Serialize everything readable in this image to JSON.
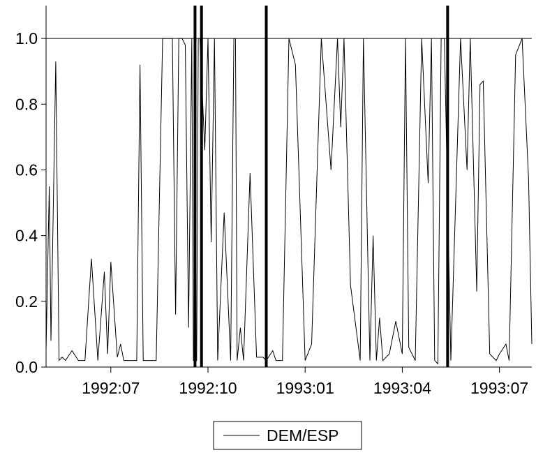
{
  "chart_data": {
    "type": "line",
    "title": "",
    "xlabel": "",
    "ylabel": "",
    "ylim": [
      0.0,
      1.1
    ],
    "xlim": [
      "1992:05",
      "1993:08"
    ],
    "yticks": [
      0.0,
      0.2,
      0.4,
      0.6,
      0.8,
      1.0
    ],
    "xticks": [
      "1992:07",
      "1992:10",
      "1993:01",
      "1993:04",
      "1993:07"
    ],
    "ytick_labels": [
      "0.0",
      "0.2",
      "0.4",
      "0.6",
      "0.8",
      "1.0"
    ],
    "reference_line": 1.0,
    "legend": {
      "position": "bottom-center",
      "entries": [
        "DEM/ESP"
      ]
    },
    "vertical_markers": [
      "1992:09.6",
      "1992:09.8",
      "1992:11.8",
      "1993:05.4"
    ],
    "series": [
      {
        "name": "DEM/ESP",
        "color": "#000000",
        "x": [
          "1992:05.0",
          "1992:05.1",
          "1992:05.15",
          "1992:05.2",
          "1992:05.3",
          "1992:05.4",
          "1992:05.5",
          "1992:05.6",
          "1992:05.8",
          "1992:06.0",
          "1992:06.2",
          "1992:06.4",
          "1992:06.6",
          "1992:06.8",
          "1992:06.9",
          "1992:07.0",
          "1992:07.2",
          "1992:07.3",
          "1992:07.4",
          "1992:07.5",
          "1992:07.55",
          "1992:07.6",
          "1992:07.7",
          "1992:07.8",
          "1992:07.9",
          "1992:08.0",
          "1992:08.2",
          "1992:08.4",
          "1992:08.6",
          "1992:08.8",
          "1992:08.9",
          "1992:09.0",
          "1992:09.1",
          "1992:09.2",
          "1992:09.3",
          "1992:09.4",
          "1992:09.5",
          "1992:09.55",
          "1992:09.65",
          "1992:09.7",
          "1992:09.75",
          "1992:09.9",
          "1992:10.0",
          "1992:10.1",
          "1992:10.2",
          "1992:10.3",
          "1992:10.5",
          "1992:10.7",
          "1992:10.8",
          "1992:10.85",
          "1992:10.9",
          "1992:11.0",
          "1992:11.1",
          "1992:11.3",
          "1992:11.5",
          "1992:11.7",
          "1992:11.8",
          "1992:12.0",
          "1992:12.1",
          "1992:12.2",
          "1992:12.3",
          "1992:12.5",
          "1992:12.7",
          "1993:01.0",
          "1993:01.2",
          "1993:01.5",
          "1993:01.8",
          "1993:02.0",
          "1993:02.1",
          "1993:02.2",
          "1993:02.4",
          "1993:02.7",
          "1993:02.8",
          "1993:03.0",
          "1993:03.1",
          "1993:03.2",
          "1993:03.3",
          "1993:03.4",
          "1993:03.6",
          "1993:03.8",
          "1993:04.0",
          "1993:04.1",
          "1993:04.2",
          "1993:04.4",
          "1993:04.6",
          "1993:04.8",
          "1993:04.9",
          "1993:05.0",
          "1993:05.1",
          "1993:05.2",
          "1993:05.3",
          "1993:05.5",
          "1993:05.8",
          "1993:06.0",
          "1993:06.1",
          "1993:06.3",
          "1993:06.4",
          "1993:06.5",
          "1993:06.7",
          "1993:06.9",
          "1993:07.0",
          "1993:07.2",
          "1993:07.3",
          "1993:07.5",
          "1993:07.7",
          "1993:07.9",
          "1993:08.0"
        ],
        "values": [
          0.05,
          0.55,
          0.08,
          0.35,
          0.93,
          0.02,
          0.03,
          0.02,
          0.05,
          0.02,
          0.02,
          0.33,
          0.02,
          0.29,
          0.04,
          0.32,
          0.03,
          0.07,
          0.02,
          0.02,
          0.02,
          0.02,
          0.02,
          0.02,
          0.92,
          0.02,
          0.02,
          0.02,
          1.0,
          1.0,
          1.0,
          0.16,
          1.0,
          1.0,
          0.98,
          0.12,
          1.0,
          0.02,
          0.02,
          1.0,
          1.0,
          0.66,
          1.0,
          0.38,
          1.0,
          0.02,
          0.47,
          0.02,
          1.0,
          1.0,
          0.02,
          0.12,
          0.02,
          0.59,
          0.03,
          0.03,
          0.02,
          0.05,
          0.02,
          0.02,
          0.02,
          1.0,
          0.92,
          0.02,
          0.07,
          1.0,
          0.6,
          1.0,
          0.73,
          1.0,
          0.25,
          0.02,
          1.0,
          0.02,
          0.4,
          0.02,
          0.15,
          0.02,
          0.04,
          0.14,
          0.04,
          1.0,
          0.06,
          0.02,
          1.0,
          0.56,
          1.0,
          0.02,
          0.01,
          1.0,
          1.0,
          0.02,
          1.0,
          0.6,
          1.0,
          0.23,
          0.86,
          0.87,
          0.04,
          0.02,
          0.04,
          0.07,
          0.02,
          0.95,
          1.0,
          0.57,
          0.07
        ]
      }
    ]
  }
}
